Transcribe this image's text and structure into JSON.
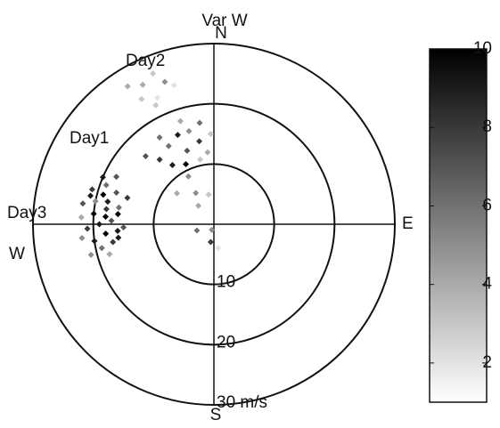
{
  "chart_data": {
    "type": "polar-scatter",
    "title": "Var W",
    "directions": [
      "N",
      "E",
      "S",
      "W"
    ],
    "rlim": [
      0,
      30
    ],
    "rticks": [
      10,
      20,
      {
        "value": 30,
        "label": "30 m/s"
      }
    ],
    "annotations": [
      "Day1",
      "Day2",
      "Day3"
    ],
    "colormap": [
      "#ffffff",
      "#000000"
    ],
    "clim": [
      1,
      10
    ],
    "cticks": [
      2,
      4,
      6,
      8,
      10
    ],
    "series": [
      {
        "theta": [
          262,
          265,
          268,
          270,
          272,
          275,
          278,
          280,
          283,
          285,
          288,
          258,
          260,
          264,
          266,
          273,
          276,
          279,
          282,
          286,
          290,
          293,
          256,
          268,
          274,
          281,
          287,
          254,
          296,
          262,
          320,
          325,
          330,
          335,
          340,
          345,
          350,
          355,
          328,
          338,
          348,
          315,
          332,
          342,
          352,
          358,
          330,
          333,
          336,
          338,
          341,
          334,
          344,
          328,
          330,
          320,
          250,
          190,
          200,
          350,
          310,
          170
        ],
        "r": [
          20,
          18,
          21,
          19,
          17,
          20,
          18,
          16,
          21,
          19,
          17,
          19,
          17,
          22,
          16,
          22,
          16,
          22,
          18,
          21,
          19,
          20,
          21,
          15,
          18,
          20,
          15,
          18,
          18,
          16,
          14,
          12,
          15,
          11,
          13,
          16,
          14,
          12,
          17,
          16,
          11,
          16,
          9,
          18,
          17,
          15,
          24,
          26,
          23,
          27,
          25,
          22,
          24,
          27,
          6,
          4,
          3,
          3,
          1,
          5,
          8,
          4
        ],
        "values": [
          9,
          10,
          8,
          9,
          7,
          10,
          8,
          6,
          9,
          10,
          7,
          6,
          8,
          5,
          9,
          4,
          10,
          7,
          9,
          8,
          6,
          9,
          5,
          7,
          10,
          5,
          8,
          4,
          7,
          9,
          8,
          9,
          6,
          10,
          7,
          5,
          8,
          4,
          6,
          9,
          3,
          7,
          5,
          4,
          6,
          3,
          3,
          4,
          2,
          3,
          5,
          3,
          2,
          4,
          5,
          4,
          6,
          8,
          5,
          3,
          4,
          2
        ]
      }
    ]
  }
}
